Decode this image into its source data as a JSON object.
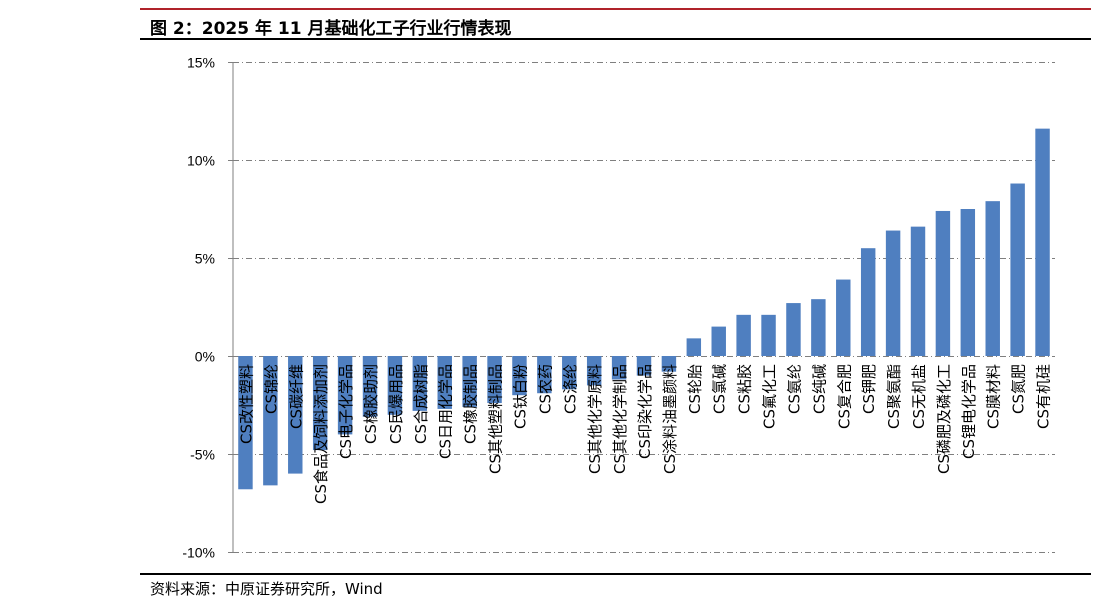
{
  "figure": {
    "title": "图 2：2025 年 11 月基础化工子行业行情表现",
    "source": "资料来源：中原证券研究所，Wind"
  },
  "chart_data": {
    "type": "bar",
    "categories": [
      "CS改性塑料",
      "CS锦纶",
      "CS碳纤维",
      "CS食品及饲料添加剂",
      "CS电子化学品",
      "CS橡胶助剂",
      "CS民爆用品",
      "CS合成树脂",
      "CS日用化学品",
      "CS橡胶制品",
      "CS其他塑料制品",
      "CS钛白粉",
      "CS农药",
      "CS涤纶",
      "CS其他化学原料",
      "CS其他化学制品",
      "CS印染化学品",
      "CS涂料油墨颜料",
      "CS轮胎",
      "CS氯碱",
      "CS粘胶",
      "CS氟化工",
      "CS氨纶",
      "CS纯碱",
      "CS复合肥",
      "CS钾肥",
      "CS聚氨酯",
      "CS无机盐",
      "CS磷肥及磷化工",
      "CS锂电化学品",
      "CS膜材料",
      "CS氮肥",
      "CS有机硅"
    ],
    "values": [
      -6.8,
      -6.6,
      -6.0,
      -4.8,
      -4.0,
      -3.1,
      -3.0,
      -2.8,
      -2.7,
      -2.6,
      -2.4,
      -2.0,
      -1.9,
      -1.7,
      -1.5,
      -1.2,
      -1.0,
      -0.8,
      0.9,
      1.5,
      2.1,
      2.1,
      2.7,
      2.9,
      3.9,
      5.5,
      6.4,
      6.6,
      7.4,
      7.5,
      7.9,
      8.8,
      11.6
    ],
    "ylim": [
      -10,
      15
    ],
    "yticks": [
      "-10%",
      "-5%",
      "0%",
      "5%",
      "10%",
      "15%"
    ],
    "grid": true,
    "bar_color": "#4f7fc0"
  }
}
